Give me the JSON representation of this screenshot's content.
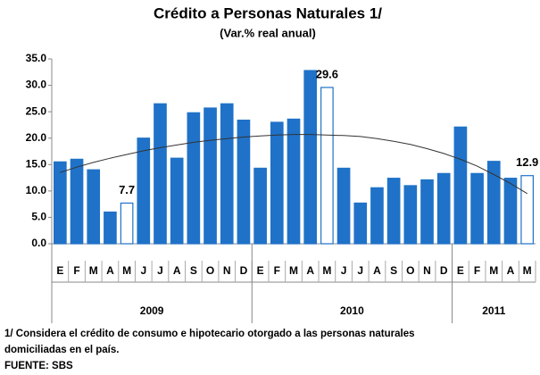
{
  "chart_data": {
    "type": "bar",
    "title": "Crédito a Personas Naturales 1/",
    "subtitle": "(Var.% real anual)",
    "categories": [
      "E",
      "F",
      "M",
      "A",
      "M",
      "J",
      "J",
      "A",
      "S",
      "O",
      "N",
      "D",
      "E",
      "F",
      "M",
      "A",
      "M",
      "J",
      "J",
      "A",
      "S",
      "O",
      "N",
      "D",
      "E",
      "F",
      "M",
      "A",
      "M"
    ],
    "groups": [
      {
        "name": "2009",
        "size": 12
      },
      {
        "name": "2010",
        "size": 12
      },
      {
        "name": "2011",
        "size": 5
      }
    ],
    "values": [
      15.5,
      16.0,
      14.0,
      6.0,
      7.7,
      20.0,
      26.5,
      16.2,
      24.8,
      25.7,
      26.5,
      23.4,
      14.3,
      23.0,
      23.6,
      32.8,
      29.6,
      14.3,
      7.7,
      10.6,
      12.4,
      11.0,
      12.1,
      13.3,
      22.1,
      13.3,
      15.6,
      12.4,
      12.9
    ],
    "value_labels": [
      null,
      null,
      null,
      null,
      "7.7",
      null,
      null,
      null,
      null,
      null,
      null,
      null,
      null,
      null,
      null,
      null,
      "29.6",
      null,
      null,
      null,
      null,
      null,
      null,
      null,
      null,
      null,
      null,
      null,
      "12.9"
    ],
    "color": "#1f72c8",
    "fill_colors": [
      "#1f72c8",
      "#1f72c8",
      "#1f72c8",
      "#1f72c8",
      "#ffffff",
      "#1f72c8",
      "#1f72c8",
      "#1f72c8",
      "#1f72c8",
      "#1f72c8",
      "#1f72c8",
      "#1f72c8",
      "#1f72c8",
      "#1f72c8",
      "#1f72c8",
      "#1f72c8",
      "#ffffff",
      "#1f72c8",
      "#1f72c8",
      "#1f72c8",
      "#1f72c8",
      "#1f72c8",
      "#1f72c8",
      "#1f72c8",
      "#1f72c8",
      "#1f72c8",
      "#1f72c8",
      "#1f72c8",
      "#ffffff"
    ],
    "trend": {
      "color": "#333333",
      "values": [
        13.5,
        14.5,
        15.4,
        16.2,
        16.9,
        17.6,
        18.2,
        18.7,
        19.2,
        19.6,
        19.9,
        20.2,
        20.4,
        20.6,
        20.7,
        20.7,
        20.6,
        20.5,
        20.3,
        19.9,
        19.4,
        18.8,
        18.0,
        17.1,
        16.0,
        14.7,
        13.1,
        11.4,
        9.5
      ]
    },
    "ylim": [
      0,
      35
    ],
    "yticks": [
      {
        "value": 0,
        "label": "0.0"
      },
      {
        "value": 5,
        "label": "5.0"
      },
      {
        "value": 10,
        "label": "10.0"
      },
      {
        "value": 15,
        "label": "15.0"
      },
      {
        "value": 20,
        "label": "20.0"
      },
      {
        "value": 25,
        "label": "25.0"
      },
      {
        "value": 30,
        "label": "30.0"
      },
      {
        "value": 35,
        "label": "35.0"
      }
    ],
    "grid": false,
    "footnotes": [
      "1/ Considera el crédito de consumo e hipotecario otorgado a las personas naturales",
      "domiciliadas en el país.",
      "FUENTE: SBS"
    ]
  }
}
